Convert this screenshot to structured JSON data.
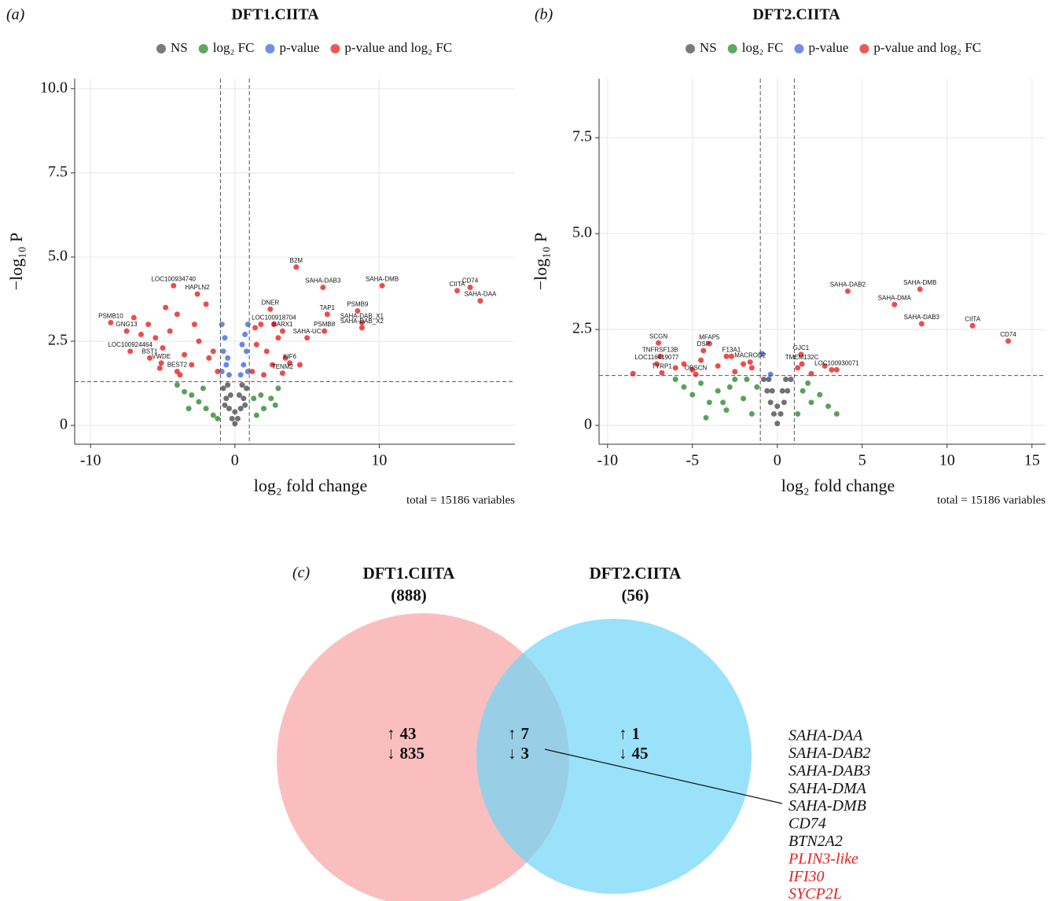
{
  "chart_data": [
    {
      "type": "scatter",
      "panel_label": "(a)",
      "title": "DFT1.CIITA",
      "x_label": "log₂ fold change",
      "y_label": "−log₁₀ P",
      "note": "total = 15186 variables",
      "xlim": [
        -11.1,
        19.4
      ],
      "ylim": [
        -0.56,
        10.3
      ],
      "xticks": [
        -10,
        0,
        10
      ],
      "yticks": [
        0,
        2.5,
        {
          "value": 5,
          "label": "5.0"
        },
        7.5,
        {
          "value": 10,
          "label": "10.0"
        }
      ],
      "grid": true,
      "vlines": [
        -1,
        1
      ],
      "hline": 1.3,
      "series": [
        {
          "name": "NS",
          "color": "#4d4d4d",
          "x": [
            -0.8,
            -0.6,
            -0.4,
            -0.2,
            0,
            0.2,
            0.4,
            0.6,
            0.8,
            -0.5,
            0.5,
            -0.3,
            0.3,
            0,
            -0.7,
            0.7
          ],
          "values": [
            1.1,
            0.8,
            0.5,
            0.2,
            0.05,
            0.2,
            0.5,
            0.8,
            1.1,
            1.2,
            1.2,
            0.9,
            0.9,
            0.4,
            0.6,
            0.6
          ]
        },
        {
          "name": "log₂ FC",
          "color": "#2e8b2e",
          "x": [
            -4,
            -3.5,
            -3,
            -2.5,
            -2,
            -1.5,
            1.5,
            2,
            2.5,
            3,
            -3.2,
            -2.2,
            1.8,
            2.8,
            -1.2,
            1.3
          ],
          "values": [
            1.2,
            1.0,
            0.9,
            0.7,
            0.5,
            0.3,
            0.3,
            0.5,
            0.8,
            1.1,
            0.5,
            1.1,
            0.9,
            0.6,
            0.2,
            0.8
          ]
        },
        {
          "name": "p-value",
          "color": "#4169e1",
          "x": [
            -0.9,
            -0.7,
            -0.5,
            -0.8,
            -0.6,
            -0.4,
            0.4,
            0.6,
            0.8,
            0.5,
            0.7,
            0.9,
            -0.9,
            0.9
          ],
          "values": [
            3.0,
            2.6,
            2.0,
            2.2,
            1.8,
            1.5,
            1.5,
            1.8,
            2.2,
            2.4,
            2.7,
            3.0,
            1.6,
            1.6
          ]
        },
        {
          "name": "p-value and log₂ FC",
          "color": "#e8201e",
          "x": [
            -6,
            -5.5,
            -5,
            -4.5,
            -4,
            -3.5,
            -3,
            -2.5,
            -2,
            -1.5,
            -6.5,
            -7,
            -5.2,
            -4.8,
            -3.8,
            -2.8,
            -1.8,
            -1.2,
            1.2,
            1.5,
            1.8,
            2.2,
            2.6,
            3.0,
            1.4,
            2.0,
            3.5,
            4.5,
            4.25,
            6.1,
            10.2,
            16.3,
            15.4,
            17.0,
            8.5,
            6.4,
            8.8,
            8.8,
            6.2,
            5.0,
            2.45,
            2.7,
            3.8,
            3.3,
            3.3,
            -4.25,
            -2.6,
            -8.6,
            -7.5,
            -7.25,
            -5.9,
            -5.1,
            -4.0
          ],
          "values": [
            3.0,
            2.6,
            2.3,
            2.8,
            3.3,
            2.1,
            1.8,
            2.5,
            3.6,
            2.2,
            2.7,
            3.2,
            1.7,
            3.5,
            1.5,
            3.0,
            2.0,
            1.6,
            1.6,
            2.4,
            3.0,
            2.2,
            1.8,
            2.6,
            2.9,
            1.5,
            2.0,
            1.8,
            4.7,
            4.1,
            4.15,
            4.1,
            4.0,
            3.7,
            3.4,
            3.3,
            3.05,
            2.9,
            2.8,
            2.6,
            3.45,
            3.0,
            1.85,
            1.55,
            2.8,
            4.15,
            3.9,
            3.05,
            2.8,
            2.2,
            2.0,
            1.85,
            1.6
          ],
          "labels": [
            null,
            null,
            null,
            null,
            null,
            null,
            null,
            null,
            null,
            null,
            null,
            null,
            null,
            null,
            null,
            null,
            null,
            null,
            null,
            null,
            null,
            null,
            null,
            null,
            null,
            null,
            null,
            null,
            "B2M",
            "SAHA-DAB3",
            "SAHA-DMB",
            "CD74",
            "CIITA",
            "SAHA-DAA",
            "PSMB9",
            "TAP1",
            "SAHA-DAB_X1",
            "SAHA-DAB_X2",
            "PSMB8",
            "SAHA-UC",
            "DNER",
            "LOC100918704",
            "KIF6",
            "TENM2",
            "BARX1",
            "LOC100934740",
            "HAPLN2",
            "PSMB10",
            "GNG13",
            "LOC100924464",
            "BST1",
            "VWDE",
            "BEST2"
          ]
        }
      ]
    },
    {
      "type": "scatter",
      "panel_label": "(b)",
      "title": "DFT2.CIITA",
      "x_label": "log₂ fold change",
      "y_label": "−log₁₀ P",
      "note": "total = 15186 variables",
      "xlim": [
        -10.5,
        15.8
      ],
      "ylim": [
        -0.49,
        9.04
      ],
      "xticks": [
        -10,
        -5,
        0,
        5,
        10,
        15
      ],
      "yticks": [
        0,
        2.5,
        {
          "value": 5,
          "label": "5.0"
        },
        7.5
      ],
      "grid": true,
      "vlines": [
        -1,
        1
      ],
      "hline": 1.3,
      "series": [
        {
          "name": "NS",
          "color": "#4d4d4d",
          "x": [
            -0.8,
            -0.6,
            -0.4,
            -0.2,
            0,
            0.2,
            0.4,
            0.6,
            0.8,
            -0.5,
            0.5,
            0,
            -0.3,
            0.3
          ],
          "values": [
            1.2,
            0.9,
            0.6,
            0.3,
            0.05,
            0.3,
            0.6,
            0.9,
            1.2,
            1.2,
            1.2,
            0.5,
            0.9,
            0.9
          ]
        },
        {
          "name": "log₂ FC",
          "color": "#2e8b2e",
          "x": [
            -5.5,
            -5,
            -4.5,
            -4,
            -3.5,
            -3,
            -2.5,
            -2,
            -1.5,
            -1.2,
            1.2,
            1.5,
            2,
            2.5,
            3,
            3.5,
            -4.2,
            -2.8,
            -1.8,
            1.8,
            -6,
            -3.2
          ],
          "values": [
            1.0,
            0.8,
            1.1,
            0.6,
            0.9,
            0.4,
            1.2,
            0.7,
            0.3,
            1.0,
            0.3,
            0.9,
            0.6,
            0.8,
            0.5,
            0.3,
            0.2,
            1.0,
            1.2,
            1.1,
            1.2,
            0.6
          ]
        },
        {
          "name": "p-value",
          "color": "#4169e1",
          "x": [
            -0.9,
            -0.4
          ],
          "values": [
            1.87,
            1.33
          ]
        },
        {
          "name": "p-value and log₂ FC",
          "color": "#e8201e",
          "x": [
            -8.5,
            -6,
            -5.5,
            -5,
            -4.5,
            -3.5,
            -3,
            -2.5,
            -2,
            -1.5,
            1.2,
            2,
            2.8,
            3.2,
            -7.0,
            -6.9,
            -7.1,
            -6.8,
            -4.0,
            -4.35,
            -2.7,
            -1.6,
            -4.8,
            1.4,
            1.45,
            3.5,
            4.15,
            8.4,
            6.9,
            8.5,
            11.5,
            13.6
          ],
          "values": [
            1.35,
            1.5,
            1.6,
            1.45,
            1.7,
            1.55,
            1.8,
            1.4,
            1.6,
            1.5,
            1.5,
            1.35,
            1.55,
            1.45,
            2.15,
            1.8,
            1.6,
            1.37,
            2.13,
            1.95,
            1.8,
            1.65,
            1.33,
            1.85,
            1.6,
            1.45,
            3.5,
            3.55,
            3.15,
            2.65,
            2.6,
            2.2
          ],
          "labels": [
            null,
            null,
            null,
            null,
            null,
            null,
            null,
            null,
            null,
            null,
            null,
            null,
            null,
            null,
            "SCGN",
            "TNFRSF13B",
            "LOC116419077",
            "TYRP1",
            "MFAP5",
            "DSP",
            "F13A1",
            "MACROD2",
            "OBSCN",
            "GJC1",
            "TMEM132C",
            "LOC100930071",
            "SAHA-DAB2",
            "SAHA-DMB",
            "SAHA-DMA",
            "SAHA-DAB3",
            "CIITA",
            "CD74"
          ]
        }
      ]
    },
    {
      "type": "venn",
      "panel_label": "(c)",
      "up_symbol": "↑",
      "down_symbol": "↓",
      "sets": [
        {
          "name": "DFT1.CIITA",
          "size": "(888)",
          "color": "#f9a3a3"
        },
        {
          "name": "DFT2.CIITA",
          "size": "(56)",
          "color": "#6fd6f7"
        }
      ],
      "regions": [
        {
          "up": 43,
          "down": 835
        },
        {
          "up": 7,
          "down": 3
        },
        {
          "up": 1,
          "down": 45
        }
      ],
      "genes": [
        {
          "name": "SAHA-DAA",
          "color": "#111111"
        },
        {
          "name": "SAHA-DAB2",
          "color": "#111111"
        },
        {
          "name": "SAHA-DAB3",
          "color": "#111111"
        },
        {
          "name": "SAHA-DMA",
          "color": "#111111"
        },
        {
          "name": "SAHA-DMB",
          "color": "#111111"
        },
        {
          "name": "CD74",
          "color": "#111111"
        },
        {
          "name": "BTN2A2",
          "color": "#111111"
        },
        {
          "name": "PLIN3-like",
          "color": "#e8201e"
        },
        {
          "name": "IFI30",
          "color": "#e8201e"
        },
        {
          "name": "SYCP2L",
          "color": "#e8201e"
        }
      ]
    }
  ]
}
